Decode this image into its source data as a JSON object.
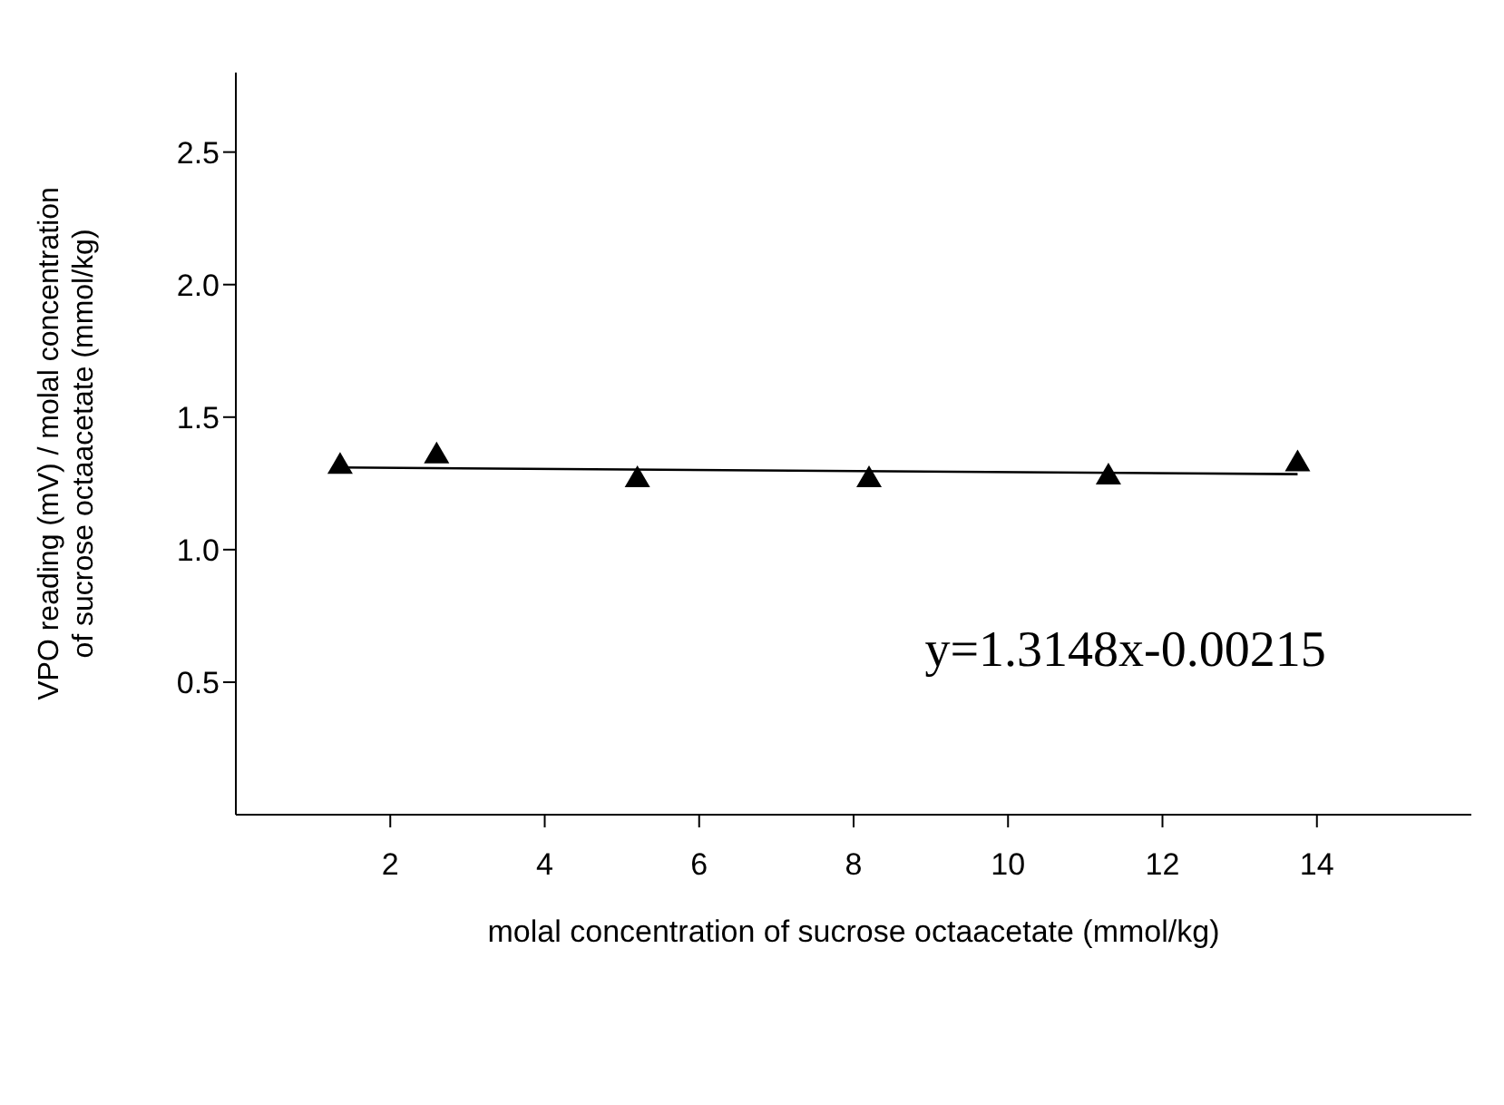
{
  "chart_data": {
    "type": "scatter",
    "xlabel": "molal concentration of sucrose octaacetate (mmol/kg)",
    "ylabel": "VPO reading (mV) / molal concentration of sucrose octaacetate (mmol/kg)",
    "x": [
      1.35,
      2.6,
      5.2,
      8.2,
      11.3,
      13.75
    ],
    "series": [
      {
        "color": "#000000",
        "marker": "triangle",
        "values": [
          1.32,
          1.36,
          1.27,
          1.27,
          1.28,
          1.33
        ]
      },
      {
        "type": "line",
        "color": "#000000",
        "marker": "none",
        "line_style": "solid",
        "x": [
          1.35,
          13.75
        ],
        "values": [
          1.31,
          1.285
        ]
      }
    ],
    "xlim": [
      0,
      16
    ],
    "xticks": [
      2,
      4,
      6,
      8,
      10,
      12,
      14
    ],
    "ylim": [
      0,
      2.8
    ],
    "yticks": [
      0.5,
      {
        "value": 1,
        "label": "1.0"
      },
      1.5,
      {
        "value": 2,
        "label": "2.0"
      },
      2.5
    ],
    "grid": false,
    "legend": false,
    "annotations": [
      "y=1.3148x-0.00215"
    ]
  }
}
